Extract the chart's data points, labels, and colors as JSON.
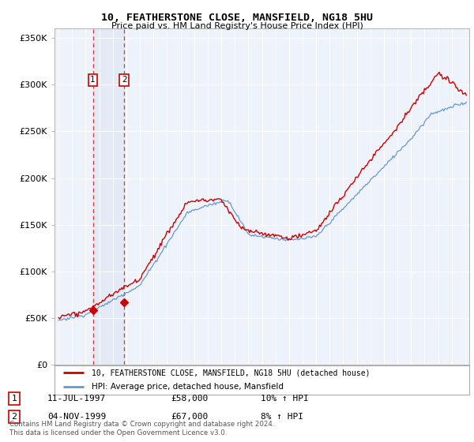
{
  "title": "10, FEATHERSTONE CLOSE, MANSFIELD, NG18 5HU",
  "subtitle": "Price paid vs. HM Land Registry's House Price Index (HPI)",
  "ylabel_ticks": [
    "£0",
    "£50K",
    "£100K",
    "£150K",
    "£200K",
    "£250K",
    "£300K",
    "£350K"
  ],
  "ytick_vals": [
    0,
    50000,
    100000,
    150000,
    200000,
    250000,
    300000,
    350000
  ],
  "ylim": [
    0,
    360000
  ],
  "xlim_start": 1994.7,
  "xlim_end": 2025.3,
  "sale1_date": 1997.53,
  "sale1_price": 58000,
  "sale1_label": "1",
  "sale2_date": 1999.84,
  "sale2_price": 67000,
  "sale2_label": "2",
  "red_color": "#cc0000",
  "blue_color": "#6699cc",
  "legend_line1": "10, FEATHERSTONE CLOSE, MANSFIELD, NG18 5HU (detached house)",
  "legend_line2": "HPI: Average price, detached house, Mansfield",
  "table_row1": [
    "1",
    "11-JUL-1997",
    "£58,000",
    "10% ↑ HPI"
  ],
  "table_row2": [
    "2",
    "04-NOV-1999",
    "£67,000",
    "8% ↑ HPI"
  ],
  "footnote": "Contains HM Land Registry data © Crown copyright and database right 2024.\nThis data is licensed under the Open Government Licence v3.0.",
  "background_color": "#ffffff",
  "plot_bg_color": "#eef2fa"
}
